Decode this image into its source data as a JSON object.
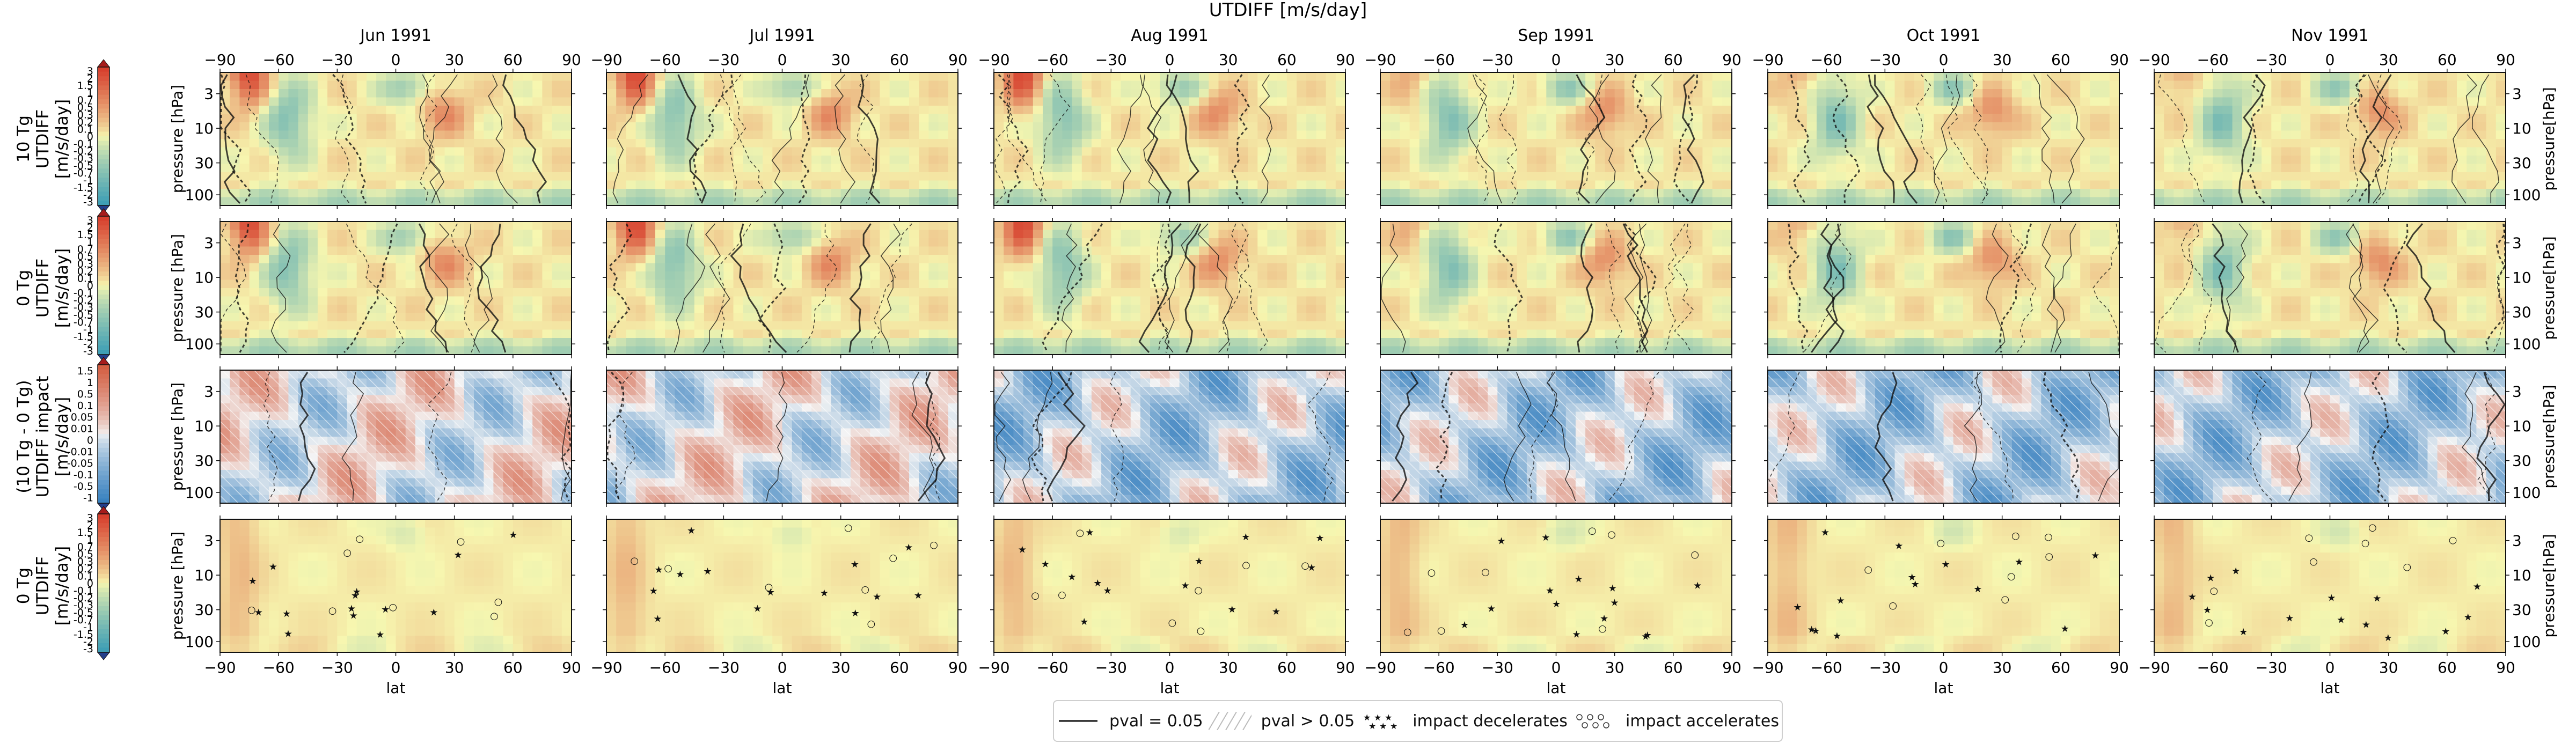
{
  "figure": {
    "title": "UTDIFF [m/s/day]",
    "months": [
      "Jun 1991",
      "Jul 1991",
      "Aug 1991",
      "Sep 1991",
      "Oct 1991",
      "Nov 1991"
    ],
    "rows": [
      {
        "label_lines": [
          "10 Tg",
          "UTDIFF",
          "[m/s/day]"
        ],
        "kind": "abs",
        "colorbar_ticks": [
          "3",
          "2",
          "1.5",
          "1",
          "0.7",
          "0.5",
          "0.3",
          "0.2",
          "0.1",
          "0",
          "-0.1",
          "-0.2",
          "-0.3",
          "-0.5",
          "-0.7",
          "-1",
          "-1.5",
          "-2",
          "-3"
        ]
      },
      {
        "label_lines": [
          "0 Tg",
          "UTDIFF",
          "[m/s/day]"
        ],
        "kind": "abs",
        "colorbar_ticks": [
          "3",
          "2",
          "1.5",
          "1",
          "0.7",
          "0.5",
          "0.3",
          "0.2",
          "0.1",
          "0",
          "-0.1",
          "-0.2",
          "-0.3",
          "-0.5",
          "-0.7",
          "-1",
          "-1.5",
          "-2",
          "-3"
        ]
      },
      {
        "label_lines": [
          "(10 Tg - 0 Tg)",
          "UTDIFF impact",
          "[m/s/day]"
        ],
        "kind": "diff",
        "colorbar_ticks": [
          "1.5",
          "1",
          "0.5",
          "0.1",
          "0.05",
          "0.01",
          "0",
          "-0.01",
          "-0.05",
          "-0.1",
          "-0.5",
          "-1"
        ]
      },
      {
        "label_lines": [
          "0 Tg",
          "UTDIFF",
          "[m/s/day]"
        ],
        "kind": "abs_pale",
        "colorbar_ticks": [
          "3",
          "2",
          "1.5",
          "1",
          "0.7",
          "0.5",
          "0.3",
          "0.2",
          "0.1",
          "0",
          "-0.1",
          "-0.2",
          "-0.3",
          "-0.5",
          "-0.7",
          "-1",
          "-1.5",
          "-2",
          "-3"
        ]
      }
    ],
    "xlabel": "lat",
    "ylabel_left": "pressure [hPa]",
    "ylabel_right": "pressure[hPa]",
    "x_ticks": [
      "−90",
      "−60",
      "−30",
      "0",
      "30",
      "60",
      "90"
    ],
    "y_ticks": [
      "3",
      "10",
      "30",
      "100"
    ]
  },
  "chart_data": {
    "type": "heatmap",
    "title": "UTDIFF [m/s/day]",
    "x": {
      "label": "lat",
      "range": [
        -90,
        90
      ],
      "ticks": [
        -90,
        -60,
        -30,
        0,
        30,
        60,
        90
      ]
    },
    "y": {
      "label": "pressure [hPa]",
      "scale": "log",
      "inverted": true,
      "ticks": [
        3,
        10,
        30,
        100
      ]
    },
    "panels_rows": [
      "10 Tg UTDIFF",
      "0 Tg UTDIFF",
      "(10 Tg - 0 Tg) UTDIFF impact",
      "0 Tg UTDIFF"
    ],
    "panels_cols": [
      "Jun 1991",
      "Jul 1991",
      "Aug 1991",
      "Sep 1991",
      "Oct 1991",
      "Nov 1991"
    ],
    "colorbar_abs": [
      -3,
      -2,
      -1.5,
      -1,
      -0.7,
      -0.5,
      -0.3,
      -0.2,
      -0.1,
      0,
      0.1,
      0.2,
      0.3,
      0.5,
      0.7,
      1,
      1.5,
      2,
      3
    ],
    "colorbar_diff": [
      -1,
      -0.5,
      -0.1,
      -0.05,
      -0.01,
      0,
      0.01,
      0.05,
      0.1,
      0.5,
      1,
      1.5
    ],
    "colors": {
      "abs_negative": "#3f9fb5",
      "abs_zero": "#f7f7b0",
      "abs_positive": "#d7402e",
      "diff_negative": "#3a82c0",
      "diff_zero": "#f4f4f4",
      "diff_positive": "#d35f42"
    }
  },
  "legend": {
    "items": [
      {
        "label": "pval = 0.05",
        "style": "line"
      },
      {
        "label": "pval > 0.05",
        "style": "hatch"
      },
      {
        "label": "impact decelerates",
        "style": "stars"
      },
      {
        "label": "impact accelerates",
        "style": "circles"
      }
    ]
  }
}
